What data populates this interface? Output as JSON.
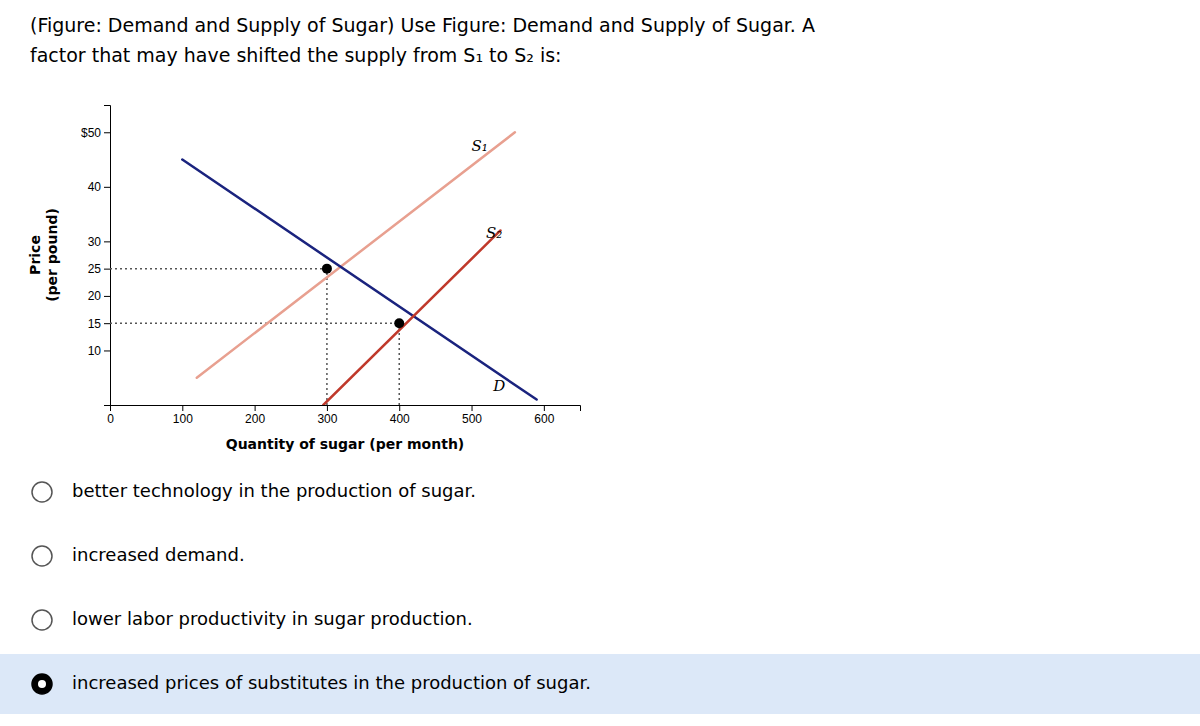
{
  "chart_data": {
    "type": "line",
    "title": "(Figure: Demand and Supply of Sugar) Use Figure: Demand and Supply of Sugar. A\nfactor that may have shifted the supply from S₁ to S₂ is:",
    "xlabel": "Quantity of sugar (per month)",
    "ylabel": "Price\n(per pound)",
    "xlim": [
      0,
      650
    ],
    "ylim": [
      0,
      55
    ],
    "xticks": [
      0,
      100,
      200,
      300,
      400,
      500,
      600
    ],
    "yticks": [
      10,
      15,
      20,
      25,
      30,
      40,
      {
        "value": 50,
        "label": "$50"
      }
    ],
    "series": [
      {
        "color": "#e8a090",
        "x": [
          120,
          560
        ],
        "values": [
          5,
          50
        ]
      },
      {
        "color": "#1a237e",
        "x": [
          100,
          590
        ],
        "values": [
          45,
          1
        ]
      },
      {
        "color": "#c0392b",
        "x": [
          295,
          540
        ],
        "values": [
          0,
          32
        ]
      },
      {
        "type": "scatter",
        "marker": "o",
        "color": "#000000",
        "x": [
          300,
          400
        ],
        "values": [
          25,
          15
        ]
      }
    ],
    "annotations": [
      {
        "text": "D",
        "x": 530,
        "y": 2
      },
      {
        "text": "S₁",
        "x": 500,
        "y": 46
      },
      {
        "text": "S₂",
        "x": 520,
        "y": 30
      }
    ],
    "options": [
      {
        "text": "better technology in the production of sugar.",
        "selected": false
      },
      {
        "text": "increased demand.",
        "selected": false
      },
      {
        "text": "lower labor productivity in sugar production.",
        "selected": false
      },
      {
        "text": "increased prices of substitutes in the production of sugar.",
        "selected": true,
        "color": "#dce8f8"
      }
    ]
  }
}
